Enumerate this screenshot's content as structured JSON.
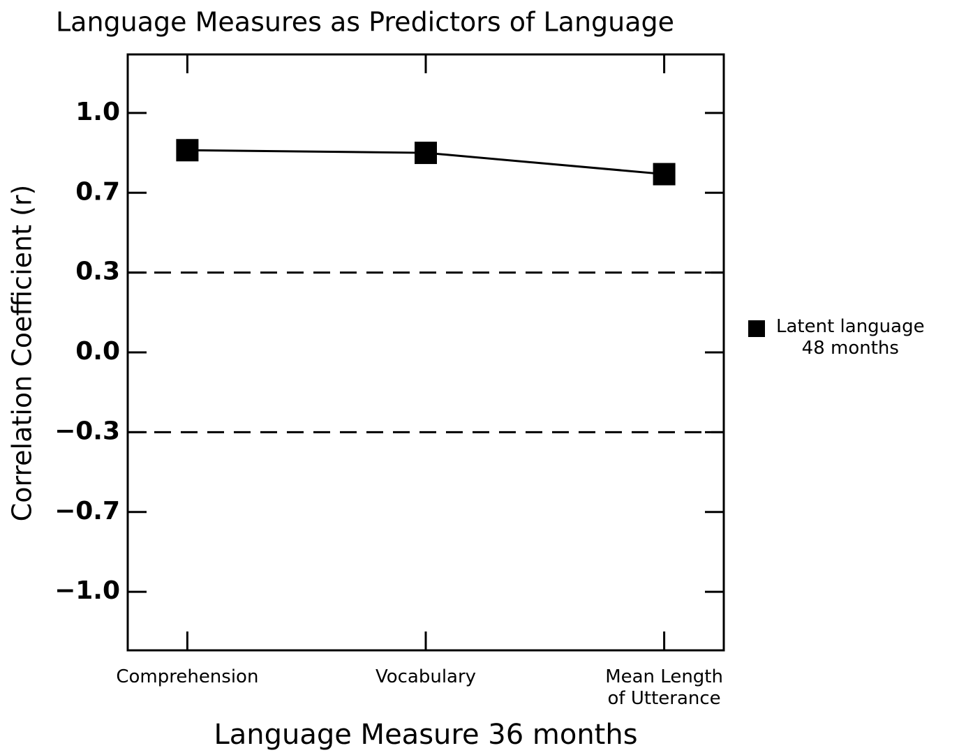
{
  "chart_data": {
    "type": "line",
    "title": "Language Measures as Predictors of Language",
    "x_label": "Language Measure 36 months",
    "y_label": "Correlation Coefficient (r)",
    "categories": [
      "Comprehension",
      "Vocabulary",
      "Mean Length\nof Utterance"
    ],
    "series": [
      {
        "name": "Latent language\n48 months",
        "color": "#000000",
        "values": [
          0.86,
          0.85,
          0.77
        ]
      }
    ],
    "ylim": [
      -1.22,
      1.22
    ],
    "yticks": [
      1.0,
      0.7,
      0.3,
      0.0,
      -0.3,
      -0.7,
      -1.0
    ],
    "reference_lines": [
      0.3,
      -0.3
    ],
    "legend": "right"
  }
}
